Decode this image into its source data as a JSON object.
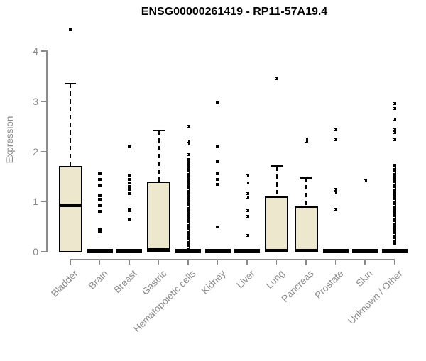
{
  "title": "ENSG00000261419 - RP11-57A19.4",
  "colors": {
    "box_fill": "#ece7cd",
    "box_border": "#000000",
    "median": "#000000",
    "outlier_point": "#000000",
    "axis": "#8a8a8a",
    "tick_label": "#8a8a8a",
    "title": "#000000",
    "background": "#ffffff"
  },
  "chart_data": {
    "type": "boxplot",
    "title": "ENSG00000261419 - RP11-57A19.4",
    "xlabel": "",
    "ylabel": "Expression",
    "ylim": [
      0,
      4
    ],
    "yticks": [
      0,
      1,
      2,
      3,
      4
    ],
    "grid": false,
    "legend": false,
    "categories": [
      "Bladder",
      "Brain",
      "Breast",
      "Gastric",
      "Hematopoietic cells",
      "Kidney",
      "Liver",
      "Lung",
      "Pancreas",
      "Prostate",
      "Skin",
      "Unknown / Other"
    ],
    "series": [
      {
        "category": "Bladder",
        "q1": 0,
        "median": 0.92,
        "q3": 1.7,
        "whisker_low": 0,
        "whisker_high": 3.35,
        "outliers": [
          4.42
        ],
        "outlier_bands": []
      },
      {
        "category": "Brain",
        "q1": 0,
        "median": 0,
        "q3": 0,
        "whisker_low": 0,
        "whisker_high": 0,
        "outliers": [
          1.55,
          1.44,
          1.32,
          1.11,
          1.05,
          0.92,
          0.8,
          0.45,
          0.4
        ],
        "outlier_bands": []
      },
      {
        "category": "Breast",
        "q1": 0,
        "median": 0,
        "q3": 0,
        "whisker_low": 0,
        "whisker_high": 0,
        "outliers": [
          2.09,
          1.53,
          1.44,
          1.37,
          1.3,
          1.24,
          1.16,
          0.85,
          0.82,
          0.64
        ],
        "outlier_bands": []
      },
      {
        "category": "Gastric",
        "q1": 0,
        "median": 0.03,
        "q3": 1.39,
        "whisker_low": 0,
        "whisker_high": 2.42,
        "outliers": [],
        "outlier_bands": []
      },
      {
        "category": "Hematopoietic cells",
        "q1": 0,
        "median": 0,
        "q3": 0,
        "whisker_low": 0,
        "whisker_high": 0,
        "outliers": [
          2.5,
          2.21,
          2.15,
          1.94
        ],
        "outlier_bands": [
          [
            0.07,
            1.84
          ]
        ]
      },
      {
        "category": "Kidney",
        "q1": 0,
        "median": 0,
        "q3": 0,
        "whisker_low": 0,
        "whisker_high": 0,
        "outliers": [
          2.97,
          2.09,
          1.8,
          1.56,
          1.44,
          1.34,
          0.49
        ],
        "outlier_bands": []
      },
      {
        "category": "Liver",
        "q1": 0,
        "median": 0,
        "q3": 0,
        "whisker_low": 0,
        "whisker_high": 0,
        "outliers": [
          1.51,
          1.37,
          1.16,
          1.09,
          0.82,
          0.71,
          0.33
        ],
        "outlier_bands": []
      },
      {
        "category": "Lung",
        "q1": 0,
        "median": 0.02,
        "q3": 1.09,
        "whisker_low": 0,
        "whisker_high": 1.7,
        "outliers": [
          3.45
        ],
        "outlier_bands": []
      },
      {
        "category": "Pancreas",
        "q1": 0,
        "median": 0.02,
        "q3": 0.89,
        "whisker_low": 0,
        "whisker_high": 1.48,
        "outliers": [
          2.25,
          2.2
        ],
        "outlier_bands": []
      },
      {
        "category": "Prostate",
        "q1": 0,
        "median": 0,
        "q3": 0,
        "whisker_low": 0,
        "whisker_high": 0,
        "outliers": [
          2.43,
          2.23,
          1.24,
          1.17,
          0.85
        ],
        "outlier_bands": []
      },
      {
        "category": "Skin",
        "q1": 0,
        "median": 0,
        "q3": 0,
        "whisker_low": 0,
        "whisker_high": 0,
        "outliers": [
          1.41
        ],
        "outlier_bands": []
      },
      {
        "category": "Unknown / Other",
        "q1": 0,
        "median": 0,
        "q3": 0,
        "whisker_low": 0,
        "whisker_high": 0,
        "outliers": [
          2.95,
          2.85,
          2.64,
          2.43,
          2.37,
          2.23
        ],
        "outlier_bands": [
          [
            1.48,
            1.72
          ],
          [
            0.17,
            1.41
          ]
        ]
      }
    ]
  }
}
